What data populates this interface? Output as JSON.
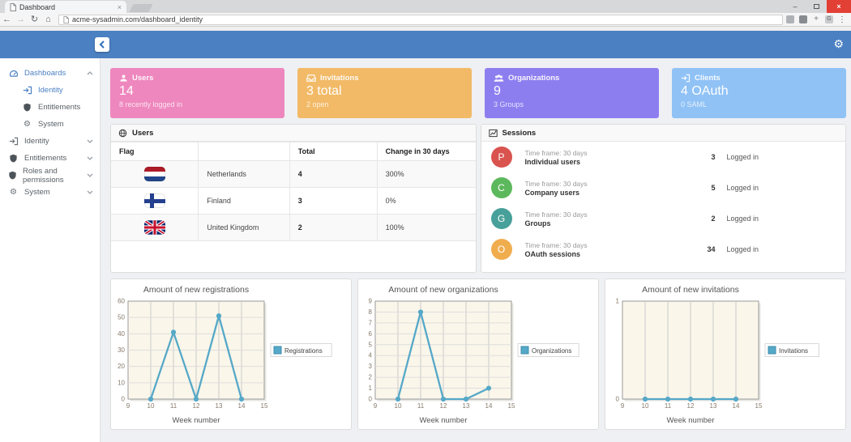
{
  "browser": {
    "tab_title": "Dashboard",
    "url": "acme-sysadmin.com/dashboard_identity",
    "icons": {
      "back": "←",
      "forward": "→",
      "refresh": "↻",
      "home": "⌂",
      "menu": "⋮",
      "minimize": "–",
      "close": "×",
      "tab_close": "×",
      "gear": "⚙",
      "extension_g": "G",
      "extension_plus": "+"
    }
  },
  "appbar": {
    "back_icon": "‹",
    "gear_icon": "settings-gear"
  },
  "sidebar": {
    "items": [
      {
        "label": "Dashboards",
        "icon": "tachometer-icon",
        "chevron": "up",
        "active": true,
        "sub": false
      },
      {
        "label": "Identity",
        "icon": "sign-in-icon",
        "chevron": null,
        "active": true,
        "sub": true
      },
      {
        "label": "Entitlements",
        "icon": "shield-icon",
        "chevron": null,
        "active": false,
        "sub": true
      },
      {
        "label": "System",
        "icon": "cogs-icon",
        "chevron": null,
        "active": false,
        "sub": true
      },
      {
        "label": "Identity",
        "icon": "sign-in-icon",
        "chevron": "down",
        "active": false,
        "sub": false
      },
      {
        "label": "Entitlements",
        "icon": "shield-icon",
        "chevron": "down",
        "active": false,
        "sub": false
      },
      {
        "label": "Roles and permissions",
        "icon": "shield-icon",
        "chevron": "down",
        "active": false,
        "sub": false
      },
      {
        "label": "System",
        "icon": "cogs-icon",
        "chevron": "down",
        "active": false,
        "sub": false
      }
    ]
  },
  "cards": [
    {
      "title": "Users",
      "value": "14",
      "subtitle": "8 recently logged in",
      "color": "#ee87be",
      "icon": "user-icon"
    },
    {
      "title": "Invitations",
      "value": "3 total",
      "subtitle": "2 open",
      "color": "#f2ba67",
      "icon": "inbox-icon"
    },
    {
      "title": "Organizations",
      "value": "9",
      "subtitle": "3 Groups",
      "color": "#8d7ef0",
      "icon": "group-icon"
    },
    {
      "title": "Clients",
      "value": "4 OAuth",
      "subtitle": "0 SAML",
      "color": "#90c2f6",
      "icon": "sign-in-icon"
    }
  ],
  "users_panel": {
    "title": "Users",
    "icon": "globe-icon",
    "headers": [
      "Flag",
      "",
      "Total",
      "Change in 30 days"
    ],
    "rows": [
      {
        "flag": "netherlands-flag",
        "country": "Netherlands",
        "total": "4",
        "change": "300%"
      },
      {
        "flag": "finland-flag",
        "country": "Finland",
        "total": "3",
        "change": "0%"
      },
      {
        "flag": "united-kingdom-flag",
        "country": "United Kingdom",
        "total": "2",
        "change": "100%"
      }
    ]
  },
  "sessions_panel": {
    "title": "Sessions",
    "icon": "chart-line-icon",
    "rows": [
      {
        "initial": "P",
        "color": "#d9534f",
        "timeframe": "Time frame: 30 days",
        "label": "Individual users",
        "count": "3",
        "status": "Logged in"
      },
      {
        "initial": "C",
        "color": "#5cb85c",
        "timeframe": "Time frame: 30 days",
        "label": "Company users",
        "count": "5",
        "status": "Logged in"
      },
      {
        "initial": "G",
        "color": "#47a09a",
        "timeframe": "Time frame: 30 days",
        "label": "Groups",
        "count": "2",
        "status": "Logged in"
      },
      {
        "initial": "O",
        "color": "#f0ad4e",
        "timeframe": "Time frame: 30 days",
        "label": "OAuth sessions",
        "count": "34",
        "status": "Logged in"
      }
    ]
  },
  "chart_data": [
    {
      "type": "line",
      "title": "Amount of new registrations",
      "xlabel": "Week number",
      "ylabel": "",
      "legend": "Registrations",
      "x": [
        10,
        11,
        12,
        13,
        14
      ],
      "values": [
        0,
        41,
        0,
        51,
        0
      ],
      "xlim": [
        9,
        15
      ],
      "ylim": [
        0,
        60
      ],
      "xticks": [
        9,
        10,
        11,
        12,
        13,
        14,
        15
      ],
      "yticks": [
        0,
        10,
        20,
        30,
        40,
        50,
        60
      ],
      "grid": true,
      "legend_position": "right",
      "line_color": "#55a8c8",
      "plot_bg": "#faf6ea"
    },
    {
      "type": "line",
      "title": "Amount of new organizations",
      "xlabel": "Week number",
      "ylabel": "",
      "legend": "Organizations",
      "x": [
        10,
        11,
        12,
        13,
        14
      ],
      "values": [
        0,
        8,
        0,
        0,
        1
      ],
      "xlim": [
        9,
        15
      ],
      "ylim": [
        0,
        9
      ],
      "xticks": [
        9,
        10,
        11,
        12,
        13,
        14,
        15
      ],
      "yticks": [
        0,
        1,
        2,
        3,
        4,
        5,
        6,
        7,
        8,
        9
      ],
      "grid": true,
      "legend_position": "right",
      "line_color": "#55a8c8",
      "plot_bg": "#faf6ea"
    },
    {
      "type": "line",
      "title": "Amount of new invitations",
      "xlabel": "Week number",
      "ylabel": "",
      "legend": "Invitations",
      "x": [
        10,
        11,
        12,
        13,
        14
      ],
      "values": [
        0,
        0,
        0,
        0,
        0
      ],
      "xlim": [
        9,
        15
      ],
      "ylim": [
        0,
        1
      ],
      "xticks": [
        9,
        10,
        11,
        12,
        13,
        14,
        15
      ],
      "yticks": [
        0,
        1
      ],
      "grid": true,
      "legend_position": "right",
      "line_color": "#55a8c8",
      "plot_bg": "#faf6ea"
    }
  ]
}
